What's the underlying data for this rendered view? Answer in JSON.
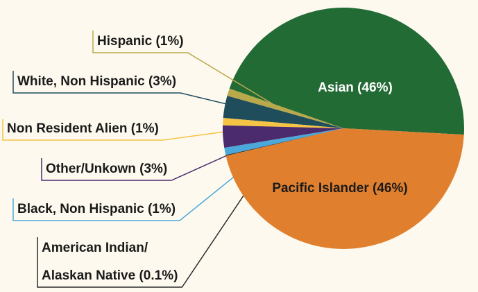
{
  "chart_data": {
    "type": "pie",
    "categories": [
      "Asian (46%)",
      "Hispanic (1%)",
      "White, Non Hispanic (3%)",
      "Non Resident Alien (1%)",
      "Other/Unkown (3%)",
      "Black, Non Hispanic (1%)",
      "American Indian/\nAlaskan Native (0.1%)",
      "Pacific Islander (46%)"
    ],
    "values": [
      46,
      1,
      3,
      1,
      3,
      1,
      0.1,
      46
    ],
    "colors": [
      "#236b35",
      "#b9a94a",
      "#1f4d5c",
      "#f6c445",
      "#4b2b6e",
      "#4aa9da",
      "#2b2b2b",
      "#e0802e"
    ]
  }
}
